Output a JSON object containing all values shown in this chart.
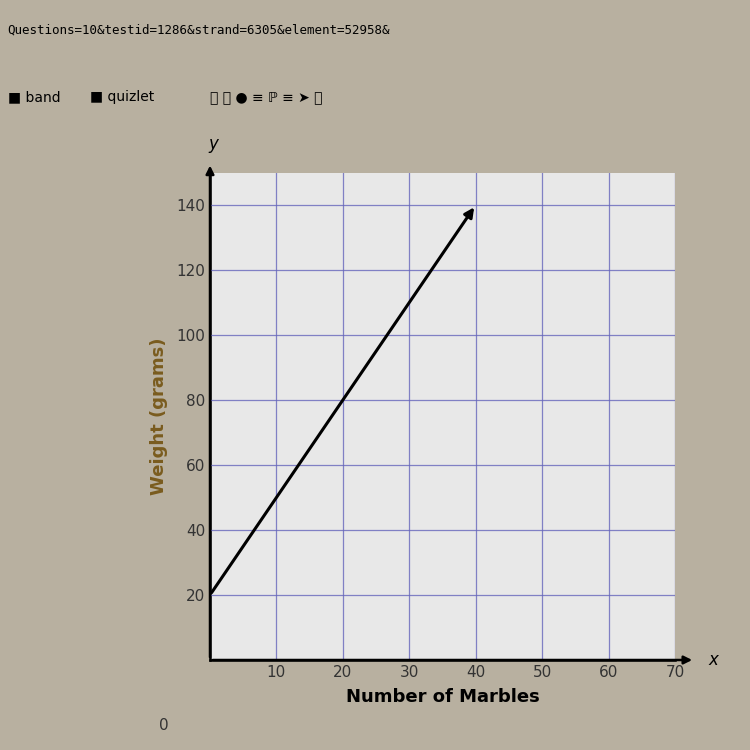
{
  "title": "",
  "xlabel": "Number of Marbles",
  "ylabel": "Weight (grams)",
  "xlim": [
    0,
    70
  ],
  "ylim": [
    0,
    150
  ],
  "xtick_vals": [
    10,
    20,
    30,
    40,
    50,
    60,
    70
  ],
  "ytick_vals": [
    20,
    40,
    60,
    80,
    100,
    120,
    140
  ],
  "line_x": [
    0,
    40
  ],
  "line_y": [
    20,
    140
  ],
  "line_color": "#000000",
  "line_width": 2.2,
  "grid_color": "#6666bb",
  "grid_alpha": 0.8,
  "plot_bg": "#e8e8e8",
  "fig_bg": "#b8b0a0",
  "browser_bar_color": "#c8c0d0",
  "url_bar_color": "#e0dde8",
  "axis_label_color": "#7a5c1e",
  "tick_label_color": "#333333",
  "xlabel_color": "#000000",
  "arrow_color": "#000000",
  "url_text": "Questions=10&testid=1286&strand=6305&element=52958&",
  "toolbar_text": "band    quizlet",
  "zero_label": "0",
  "x_axis_letter": "x",
  "y_axis_letter": "y"
}
